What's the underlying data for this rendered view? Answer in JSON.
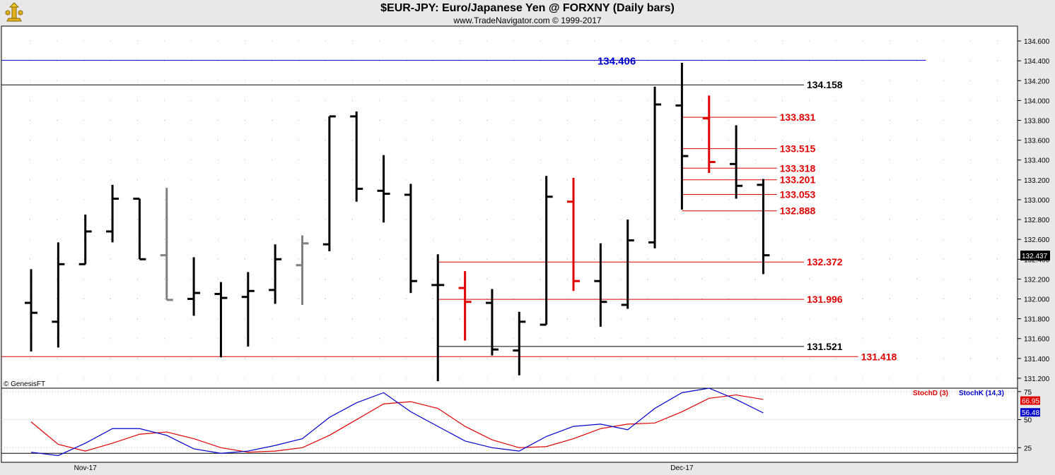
{
  "header": {
    "title": "$EUR-JPY:  Euro/Japanese Yen @ FORXNY  (Daily bars)",
    "subtitle": "www.TradeNavigator.com © 1999-2017",
    "watermark": "© GenesisFT"
  },
  "colors": {
    "bar": "#000000",
    "bar_gray": "#808080",
    "bar_red": "#e00000",
    "level_black": "#000000",
    "level_red": "#e00000",
    "level_blue": "#0000cc",
    "stoch_d": "#e00000",
    "stoch_k": "#0000cc"
  },
  "chart_data": [
    {
      "type": "ohlc",
      "title": "$EUR-JPY:  Euro/Japanese Yen @ FORXNY  (Daily bars)",
      "ylim": [
        131.1,
        134.75
      ],
      "y_ticks": [
        "134.600",
        "134.400",
        "134.200",
        "134.000",
        "133.800",
        "133.600",
        "133.400",
        "133.200",
        "133.000",
        "132.800",
        "132.600",
        "132.400",
        "132.200",
        "132.000",
        "131.800",
        "131.600",
        "131.400",
        "131.200"
      ],
      "x_labels": [
        {
          "label": "Nov-17",
          "bar": 2
        },
        {
          "label": "Dec-17",
          "bar": 24
        }
      ],
      "last_price": "132.437",
      "bars": [
        {
          "o": 131.96,
          "h": 132.3,
          "l": 131.47,
          "c": 131.86,
          "color": "black"
        },
        {
          "o": 131.77,
          "h": 132.57,
          "l": 131.51,
          "c": 132.35,
          "color": "black"
        },
        {
          "o": 132.35,
          "h": 132.85,
          "l": 132.35,
          "c": 132.68,
          "color": "black"
        },
        {
          "o": 132.68,
          "h": 133.15,
          "l": 132.57,
          "c": 133.01,
          "color": "black"
        },
        {
          "o": 133.01,
          "h": 133.01,
          "l": 132.4,
          "c": 132.4,
          "color": "black"
        },
        {
          "o": 132.44,
          "h": 133.12,
          "l": 131.99,
          "c": 131.99,
          "color": "gray"
        },
        {
          "o": 132.0,
          "h": 132.42,
          "l": 131.83,
          "c": 132.06,
          "color": "black"
        },
        {
          "o": 132.05,
          "h": 132.17,
          "l": 131.41,
          "c": 132.01,
          "color": "black"
        },
        {
          "o": 132.02,
          "h": 132.27,
          "l": 131.52,
          "c": 132.08,
          "color": "black"
        },
        {
          "o": 132.09,
          "h": 132.55,
          "l": 131.95,
          "c": 132.4,
          "color": "black"
        },
        {
          "o": 132.34,
          "h": 132.64,
          "l": 131.94,
          "c": 132.56,
          "color": "gray"
        },
        {
          "o": 132.55,
          "h": 133.84,
          "l": 132.48,
          "c": 133.84,
          "color": "black"
        },
        {
          "o": 133.84,
          "h": 133.89,
          "l": 132.98,
          "c": 133.11,
          "color": "black"
        },
        {
          "o": 133.09,
          "h": 133.45,
          "l": 132.77,
          "c": 133.06,
          "color": "black"
        },
        {
          "o": 133.05,
          "h": 133.16,
          "l": 132.06,
          "c": 132.18,
          "color": "black"
        },
        {
          "o": 132.14,
          "h": 132.45,
          "l": 131.17,
          "c": 132.14,
          "color": "black"
        },
        {
          "o": 132.11,
          "h": 132.28,
          "l": 131.58,
          "c": 131.97,
          "color": "red"
        },
        {
          "o": 131.96,
          "h": 132.1,
          "l": 131.43,
          "c": 131.49,
          "color": "black"
        },
        {
          "o": 131.48,
          "h": 131.87,
          "l": 131.23,
          "c": 131.77,
          "color": "black"
        },
        {
          "o": 131.74,
          "h": 133.24,
          "l": 131.74,
          "c": 133.03,
          "color": "black"
        },
        {
          "o": 132.98,
          "h": 133.22,
          "l": 132.08,
          "c": 132.18,
          "color": "red"
        },
        {
          "o": 132.18,
          "h": 132.56,
          "l": 131.72,
          "c": 131.97,
          "color": "black"
        },
        {
          "o": 131.94,
          "h": 132.8,
          "l": 131.9,
          "c": 132.59,
          "color": "black"
        },
        {
          "o": 132.57,
          "h": 134.14,
          "l": 132.51,
          "c": 133.96,
          "color": "black"
        },
        {
          "o": 133.95,
          "h": 134.38,
          "l": 132.9,
          "c": 133.44,
          "color": "black"
        },
        {
          "o": 133.82,
          "h": 134.05,
          "l": 133.27,
          "c": 133.38,
          "color": "red"
        },
        {
          "o": 133.36,
          "h": 133.75,
          "l": 133.01,
          "c": 133.14,
          "color": "black"
        },
        {
          "o": 133.15,
          "h": 133.21,
          "l": 132.25,
          "c": 132.44,
          "color": "black"
        }
      ],
      "levels": [
        {
          "value": 134.406,
          "label": "134.406",
          "color": "blue",
          "from_bar": -1,
          "to_bar": 33,
          "label_side": "left",
          "label_bar": 22.3
        },
        {
          "value": 134.158,
          "label": "134.158",
          "color": "black",
          "from_bar": -1,
          "to_bar": 28.5,
          "label_side": "right"
        },
        {
          "value": 133.831,
          "label": "133.831",
          "color": "red",
          "from_bar": 24,
          "to_bar": 27.5,
          "label_side": "right"
        },
        {
          "value": 133.515,
          "label": "133.515",
          "color": "red",
          "from_bar": 24,
          "to_bar": 27.5,
          "label_side": "right"
        },
        {
          "value": 133.318,
          "label": "133.318",
          "color": "red",
          "from_bar": 24,
          "to_bar": 27.5,
          "label_side": "right"
        },
        {
          "value": 133.201,
          "label": "133.201",
          "color": "red",
          "from_bar": 24,
          "to_bar": 27.5,
          "label_side": "right"
        },
        {
          "value": 133.053,
          "label": "133.053",
          "color": "red",
          "from_bar": 24,
          "to_bar": 27.5,
          "label_side": "right"
        },
        {
          "value": 132.888,
          "label": "132.888",
          "color": "red",
          "from_bar": 24,
          "to_bar": 27.5,
          "label_side": "right"
        },
        {
          "value": 132.372,
          "label": "132.372",
          "color": "red",
          "from_bar": 15,
          "to_bar": 28.5,
          "label_side": "right"
        },
        {
          "value": 131.996,
          "label": "131.996",
          "color": "red",
          "from_bar": 15,
          "to_bar": 28.5,
          "label_side": "right"
        },
        {
          "value": 131.521,
          "label": "131.521",
          "color": "black",
          "from_bar": 15,
          "to_bar": 28.5,
          "label_side": "right"
        },
        {
          "value": 131.418,
          "label": "131.418",
          "color": "red",
          "from_bar": -1,
          "to_bar": 30.5,
          "label_side": "right"
        }
      ]
    },
    {
      "type": "line",
      "ylim": [
        12,
        78
      ],
      "y_ticks": [
        "75",
        "50",
        "25"
      ],
      "series": [
        {
          "name": "StochD (3)",
          "color": "red",
          "values": [
            48,
            28,
            22,
            29,
            37,
            39,
            33,
            25,
            21,
            22,
            25,
            36,
            50,
            64,
            66,
            60,
            44,
            32,
            25,
            26,
            33,
            42,
            46,
            47,
            57,
            69,
            72,
            68
          ]
        },
        {
          "name": "StochK (14,3)",
          "color": "blue",
          "values": [
            21,
            18,
            29,
            42,
            42,
            36,
            24,
            20,
            22,
            27,
            33,
            52,
            65,
            74,
            57,
            44,
            31,
            25,
            22,
            35,
            44,
            46,
            41,
            60,
            74,
            78,
            68,
            56
          ]
        }
      ],
      "last_values": [
        "66.95",
        "56.48"
      ]
    }
  ]
}
